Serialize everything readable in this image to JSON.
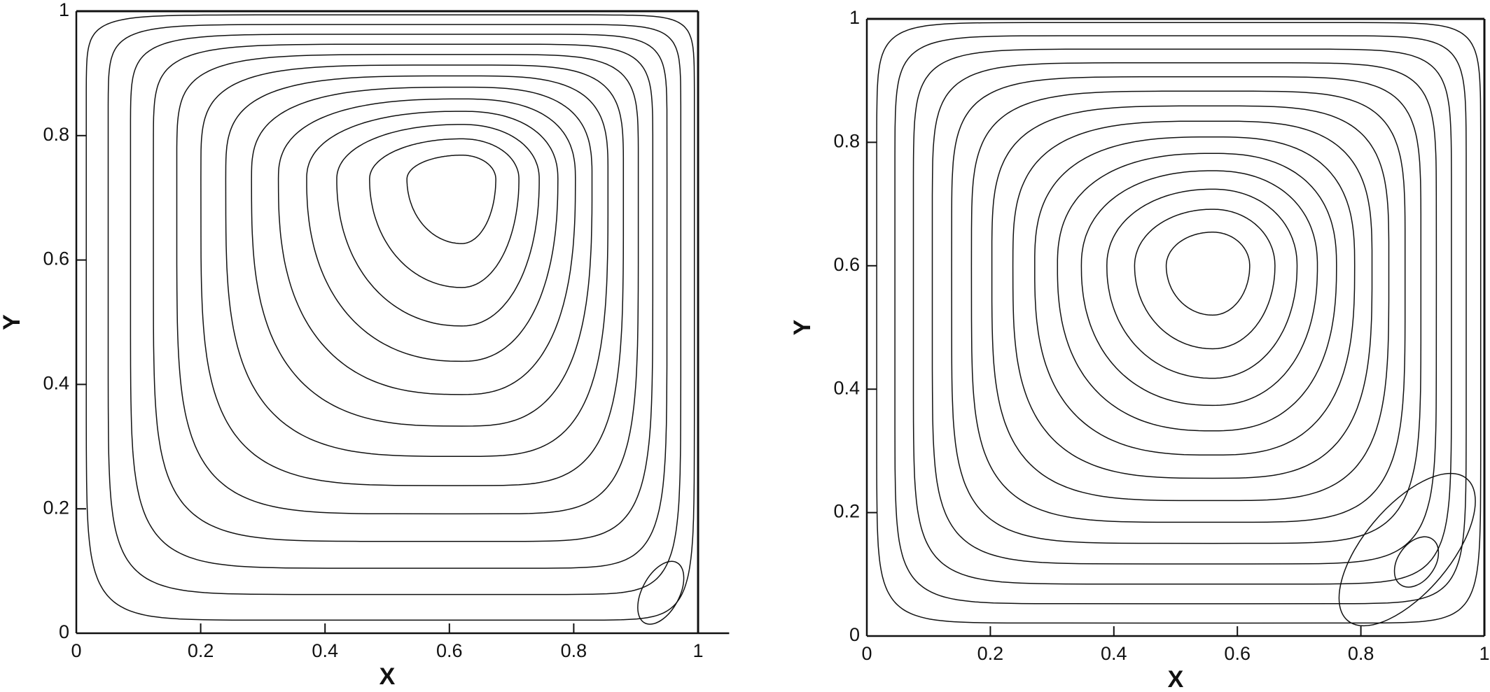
{
  "chart_data": [
    {
      "type": "contour",
      "x_label": "X",
      "y_label": "Y",
      "xlim": [
        0,
        1.05
      ],
      "ylim": [
        0,
        1
      ],
      "xticks": [
        0,
        0.2,
        0.4,
        0.6,
        0.8,
        1
      ],
      "yticks": [
        0,
        0.2,
        0.4,
        0.6,
        0.8,
        1
      ]
    },
    {
      "type": "contour",
      "x_label": "X",
      "y_label": "Y",
      "xlim": [
        0,
        1
      ],
      "ylim": [
        0,
        1
      ],
      "xticks": [
        0,
        0.2,
        0.4,
        0.6,
        0.8,
        1
      ],
      "yticks": [
        0,
        0.2,
        0.4,
        0.6,
        0.8,
        1
      ]
    }
  ]
}
